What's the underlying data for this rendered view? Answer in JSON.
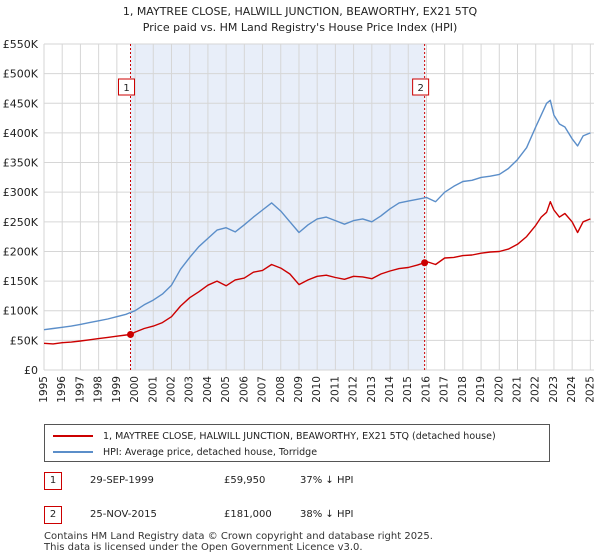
{
  "chart_data": {
    "type": "line",
    "title": "1, MAYTREE CLOSE, HALWILL JUNCTION, BEAWORTHY, EX21 5TQ",
    "subtitle": "Price paid vs. HM Land Registry's House Price Index (HPI)",
    "xlim": [
      1995,
      2025.2
    ],
    "ylim": [
      0,
      550000
    ],
    "x_ticks": [
      1995,
      1996,
      1997,
      1998,
      1999,
      2000,
      2001,
      2002,
      2003,
      2004,
      2005,
      2006,
      2007,
      2008,
      2009,
      2010,
      2011,
      2012,
      2013,
      2014,
      2015,
      2016,
      2017,
      2018,
      2019,
      2020,
      2021,
      2022,
      2023,
      2024,
      2025
    ],
    "y_ticks": [
      {
        "value": 0,
        "label": "£0"
      },
      {
        "value": 50000,
        "label": "£50K"
      },
      {
        "value": 100000,
        "label": "£100K"
      },
      {
        "value": 150000,
        "label": "£150K"
      },
      {
        "value": 200000,
        "label": "£200K"
      },
      {
        "value": 250000,
        "label": "£250K"
      },
      {
        "value": 300000,
        "label": "£300K"
      },
      {
        "value": 350000,
        "label": "£350K"
      },
      {
        "value": 400000,
        "label": "£400K"
      },
      {
        "value": 450000,
        "label": "£450K"
      },
      {
        "value": 500000,
        "label": "£500K"
      },
      {
        "value": 550000,
        "label": "£550K"
      }
    ],
    "shaded_span": [
      1999.75,
      2015.9
    ],
    "series": [
      {
        "name": "1, MAYTREE CLOSE, HALWILL JUNCTION, BEAWORTHY, EX21 5TQ (detached house)",
        "color": "#cc0000",
        "x": [
          1995,
          1995.5,
          1996,
          1996.5,
          1997,
          1997.5,
          1998,
          1998.5,
          1999,
          1999.5,
          1999.75,
          2000,
          2000.5,
          2001,
          2001.5,
          2002,
          2002.5,
          2003,
          2003.5,
          2004,
          2004.5,
          2005,
          2005.5,
          2006,
          2006.5,
          2007,
          2007.5,
          2008,
          2008.5,
          2009,
          2009.5,
          2010,
          2010.5,
          2011,
          2011.5,
          2012,
          2012.5,
          2013,
          2013.5,
          2014,
          2014.5,
          2015,
          2015.5,
          2015.9,
          2016,
          2016.5,
          2017,
          2017.5,
          2018,
          2018.5,
          2019,
          2019.5,
          2020,
          2020.5,
          2021,
          2021.5,
          2022,
          2022.3,
          2022.6,
          2022.8,
          2023,
          2023.3,
          2023.6,
          2024,
          2024.3,
          2024.6,
          2025
        ],
        "y": [
          45000,
          44000,
          46000,
          47000,
          49000,
          51000,
          53000,
          55000,
          57000,
          59000,
          59950,
          64000,
          70000,
          74000,
          80000,
          90000,
          108000,
          122000,
          132000,
          143000,
          150000,
          142000,
          152000,
          155000,
          165000,
          168000,
          178000,
          172000,
          162000,
          144000,
          152000,
          158000,
          160000,
          156000,
          153000,
          158000,
          157000,
          154000,
          162000,
          167000,
          171000,
          173000,
          177000,
          181000,
          183000,
          178000,
          189000,
          190000,
          193000,
          194000,
          197000,
          199000,
          200000,
          204000,
          212000,
          225000,
          244000,
          258000,
          266000,
          284000,
          270000,
          258000,
          264000,
          250000,
          232000,
          250000,
          255000
        ]
      },
      {
        "name": "HPI: Average price, detached house, Torridge",
        "color": "#5b8ec9",
        "x": [
          1995,
          1995.5,
          1996,
          1996.5,
          1997,
          1997.5,
          1998,
          1998.5,
          1999,
          1999.5,
          2000,
          2000.5,
          2001,
          2001.5,
          2002,
          2002.5,
          2003,
          2003.5,
          2004,
          2004.5,
          2005,
          2005.5,
          2006,
          2006.5,
          2007,
          2007.5,
          2008,
          2008.5,
          2009,
          2009.5,
          2010,
          2010.5,
          2011,
          2011.5,
          2012,
          2012.5,
          2013,
          2013.5,
          2014,
          2014.5,
          2015,
          2015.5,
          2016,
          2016.5,
          2017,
          2017.5,
          2018,
          2018.5,
          2019,
          2019.5,
          2020,
          2020.5,
          2021,
          2021.5,
          2022,
          2022.3,
          2022.6,
          2022.8,
          2023,
          2023.3,
          2023.6,
          2024,
          2024.3,
          2024.6,
          2025
        ],
        "y": [
          68000,
          70000,
          72000,
          74000,
          77000,
          80000,
          83000,
          86000,
          90000,
          94000,
          100000,
          110000,
          118000,
          128000,
          143000,
          170000,
          190000,
          208000,
          222000,
          236000,
          240000,
          233000,
          245000,
          258000,
          270000,
          282000,
          268000,
          250000,
          232000,
          245000,
          255000,
          258000,
          252000,
          246000,
          252000,
          255000,
          250000,
          260000,
          272000,
          282000,
          285000,
          288000,
          291000,
          284000,
          300000,
          310000,
          318000,
          320000,
          325000,
          327000,
          330000,
          340000,
          355000,
          375000,
          410000,
          430000,
          450000,
          455000,
          430000,
          415000,
          410000,
          390000,
          378000,
          395000,
          400000
        ]
      }
    ],
    "markers": [
      {
        "label": "1",
        "x": 1999.75,
        "y": 59950
      },
      {
        "label": "2",
        "x": 2015.9,
        "y": 181000
      }
    ]
  },
  "legend": {
    "property_label": "1, MAYTREE CLOSE, HALWILL JUNCTION, BEAWORTHY, EX21 5TQ (detached house)",
    "hpi_label": "HPI: Average price, detached house, Torridge"
  },
  "transactions": [
    {
      "num": "1",
      "date": "29-SEP-1999",
      "price": "£59,950",
      "hpi": "37% ↓ HPI"
    },
    {
      "num": "2",
      "date": "25-NOV-2015",
      "price": "£181,000",
      "hpi": "38% ↓ HPI"
    }
  ],
  "footer": {
    "line1": "Contains HM Land Registry data © Crown copyright and database right 2025.",
    "line2": "This data is licensed under the Open Government Licence v3.0."
  },
  "colors": {
    "property": "#cc0000",
    "hpi": "#5b8ec9",
    "shade": "#e8eef9",
    "grid": "#d6d6d6"
  }
}
